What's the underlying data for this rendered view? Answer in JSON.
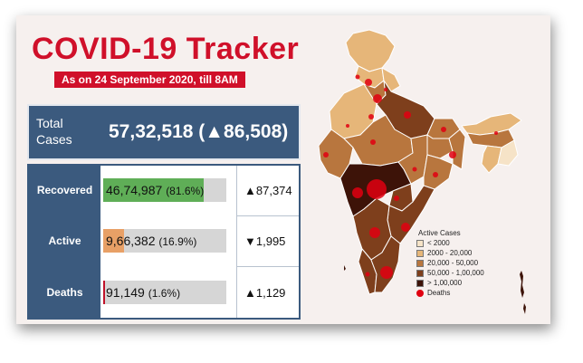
{
  "header": {
    "title": "COVID-19 Tracker",
    "subtitle": "As on 24 September 2020, till 8AM"
  },
  "total": {
    "label": "Total Cases",
    "value": "57,32,518",
    "change": "(▲86,508)"
  },
  "stats": [
    {
      "label": "Recovered",
      "value": "46,74,987",
      "percent_text": "(81.6%)",
      "percent": 81.6,
      "delta": "▲87,374",
      "color": "#5fae57"
    },
    {
      "label": "Active",
      "value": "9,66,382",
      "percent_text": "(16.9%)",
      "percent": 16.9,
      "delta": "▼1,995",
      "color": "#e8a066"
    },
    {
      "label": "Deaths",
      "value": "91,149",
      "percent_text": "(1.6%)",
      "percent": 1.6,
      "delta": "▲1,129",
      "color": "#c0122a"
    }
  ],
  "legend": {
    "title": "Active Cases",
    "items": [
      {
        "label": "< 2000",
        "color": "#f6e3c7"
      },
      {
        "label": "2000 - 20,000",
        "color": "#e6b679"
      },
      {
        "label": "20,000 - 50,000",
        "color": "#b8763e"
      },
      {
        "label": "50,000 - 1,00,000",
        "color": "#7e3f1c"
      },
      {
        "label": "> 1,00,000",
        "color": "#3d1308"
      }
    ],
    "deaths_label": "Deaths"
  }
}
